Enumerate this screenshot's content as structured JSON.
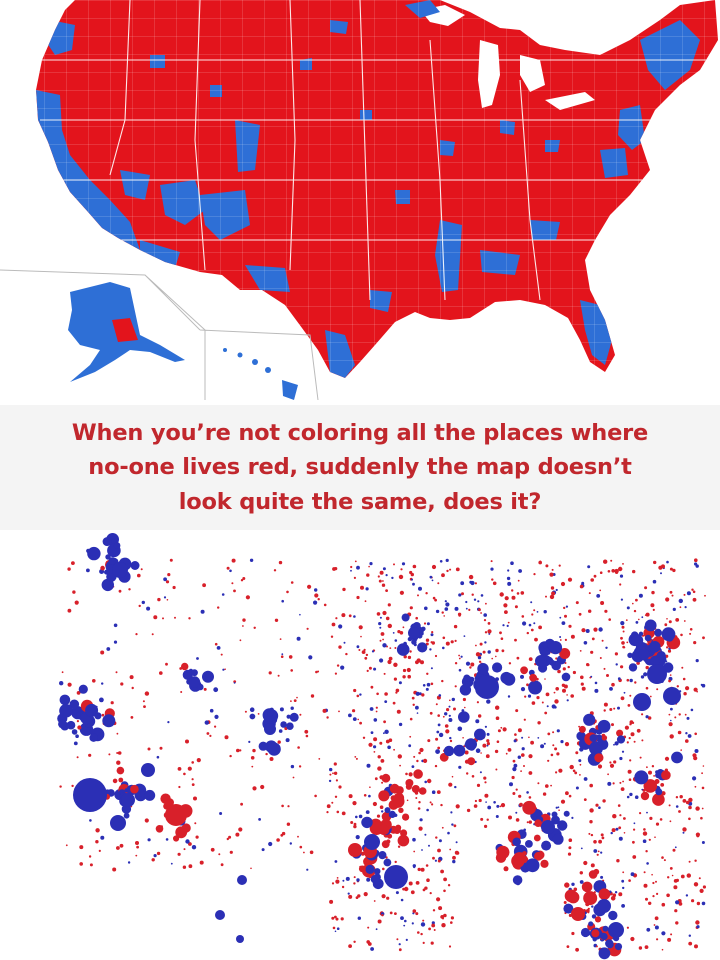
{
  "caption": {
    "line1": "When you’re not coloring all the places where",
    "line2": "no-one lives red, suddenly the map doesn’t",
    "line3": "look quite the same, does it?"
  },
  "colors": {
    "republican_red": "#e3141c",
    "democrat_blue": "#2e6fd6",
    "bubble_red": "#d8202a",
    "bubble_blue": "#2b2fb5",
    "caption_text": "#c1272d",
    "caption_band": "#f4f4f4",
    "county_lines": "#ffffff"
  },
  "maps": {
    "top": {
      "type": "county-choropleth",
      "region": "United States",
      "insets": [
        "Alaska",
        "Hawaii"
      ],
      "legend": "none"
    },
    "bottom": {
      "type": "proportional-symbol",
      "region": "United States",
      "legend": "none"
    }
  }
}
